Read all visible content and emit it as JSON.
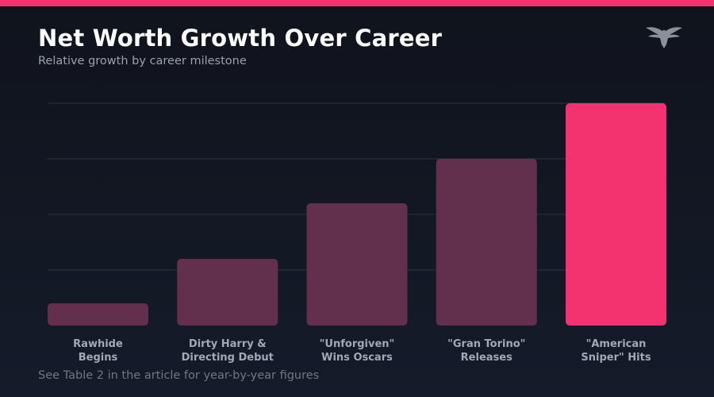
{
  "header": {
    "title": "Net Worth Growth Over Career",
    "subtitle": "Relative growth by career milestone"
  },
  "logo": {
    "icon": "eagle-logo-icon",
    "color": "#8b909b"
  },
  "footnote": "See Table 2 in the article for year-by-year figures",
  "colors": {
    "accent": "#f2336f",
    "bar": "#62304c",
    "highlight_bar": "#f2336f",
    "grid": "#2b3140",
    "tick_label": "#a3a8b3"
  },
  "chart_data": {
    "type": "bar",
    "title": "Net Worth Growth Over Career",
    "subtitle": "Relative growth by career milestone",
    "xlabel": "",
    "ylabel": "",
    "categories": [
      [
        "Rawhide",
        "Begins"
      ],
      [
        "Dirty Harry &",
        "Directing Debut"
      ],
      [
        "\"Unforgiven\"",
        "Wins Oscars"
      ],
      [
        "\"Gran Torino\"",
        "Releases"
      ],
      [
        "\"American",
        "Sniper\" Hits"
      ]
    ],
    "values": [
      10,
      30,
      55,
      75,
      100
    ],
    "highlight_index": 4,
    "ylim": [
      0,
      100
    ],
    "grid_values": [
      25,
      50,
      75,
      100
    ],
    "grid": true,
    "y_tick_labels_shown": false,
    "legend": "none"
  }
}
